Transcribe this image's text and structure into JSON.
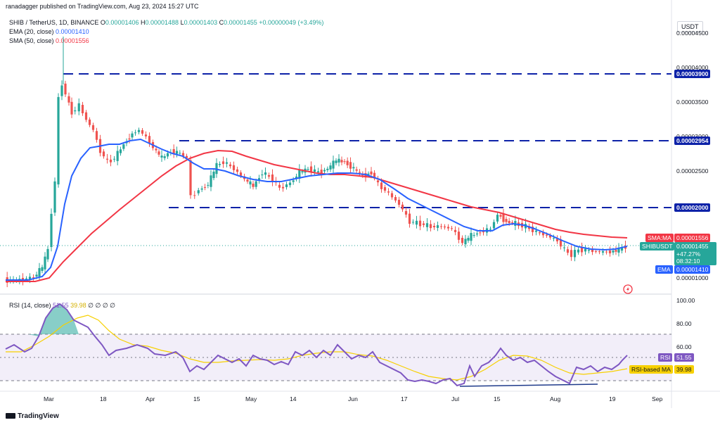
{
  "header": {
    "publisher": "ranadagger published on TradingView.com, Aug 23, 2024 15:27 UTC",
    "symbol_line": "SHIB / TetherUS, 1D, BINANCE",
    "o_label": "O",
    "o_value": "0.00001406",
    "h_label": "H",
    "h_value": "0.00001488",
    "l_label": "L",
    "l_value": "0.00001403",
    "c_label": "C",
    "c_value": "0.00001455",
    "change": "+0.00000049 (+3.49%)",
    "ema_label": "EMA (20, close)",
    "ema_value": "0.00001410",
    "sma_label": "SMA (50, close)",
    "sma_value": "0.00001556"
  },
  "price_axis": {
    "currency": "USDT",
    "ticks": [
      "0.00004500",
      "0.00004000",
      "0.00003500",
      "0.00003000",
      "0.00002500",
      "0.00001000"
    ],
    "level_3900": "0.00003900",
    "level_2954": "0.00002954",
    "level_2000": "0.00002000",
    "sma_tag_label": "SMA:MA",
    "sma_tag_value": "0.00001556",
    "symbol_tag": "SHIBUSDT",
    "symbol_price": "0.00001455",
    "symbol_change": "+47.27%",
    "countdown": "08:32:10",
    "ema_tag_label": "EMA",
    "ema_tag_value": "0.00001410"
  },
  "rsi": {
    "label": "RSI (14, close)",
    "v1": "51.55",
    "v2": "39.98",
    "zeros": "∅ ∅ ∅ ∅",
    "ticks": [
      "100.00",
      "80.00",
      "60.00"
    ],
    "rsi_tag_label": "RSI",
    "rsi_tag_value": "51.55",
    "ma_tag_label": "RSI-based MA",
    "ma_tag_value": "39.98"
  },
  "time_axis": [
    "Mar",
    "18",
    "Apr",
    "15",
    "May",
    "14",
    "Jun",
    "17",
    "Jul",
    "15",
    "Aug",
    "19",
    "Sep"
  ],
  "branding": {
    "logo_text": "TradingView"
  },
  "colors": {
    "up": "#26a69a",
    "down": "#ef5350",
    "ema": "#2962ff",
    "sma": "#f23645",
    "rsi": "#7e57c2",
    "rsi_ma": "#f7d000",
    "level": "#0d22a8",
    "div": "#1e3a8a"
  }
}
